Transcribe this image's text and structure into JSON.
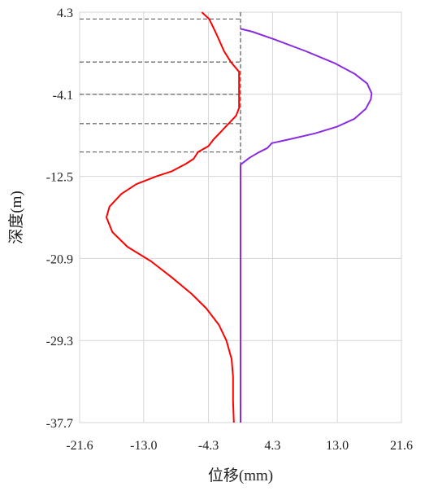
{
  "chart_data": {
    "type": "line",
    "xlabel": "位移(mm)",
    "ylabel": "深度(m)",
    "xlim": [
      -21.6,
      21.6
    ],
    "ylim": [
      -37.7,
      4.3
    ],
    "x_ticks": [
      "-21.6",
      "-13.0",
      "-4.3",
      "4.3",
      "13.0",
      "21.6"
    ],
    "y_ticks": [
      "4.3",
      "-4.1",
      "-12.5",
      "-20.9",
      "-29.3",
      "-37.7"
    ],
    "grid": true,
    "series": [
      {
        "color": "#ff0000",
        "points": [
          [
            -5.2,
            4.3
          ],
          [
            -4.2,
            3.6
          ],
          [
            -3.2,
            2.0
          ],
          [
            -2.2,
            0.3
          ],
          [
            -1.3,
            -0.8
          ],
          [
            -0.2,
            -1.8
          ],
          [
            -0.2,
            -3.5
          ],
          [
            -0.2,
            -5.5
          ],
          [
            -0.6,
            -6.3
          ],
          [
            -1.6,
            -7.1
          ],
          [
            -2.6,
            -7.9
          ],
          [
            -3.6,
            -8.7
          ],
          [
            -4.3,
            -9.4
          ],
          [
            -5.7,
            -10.0
          ],
          [
            -6.3,
            -10.7
          ],
          [
            -7.3,
            -11.2
          ],
          [
            -9.3,
            -12.0
          ],
          [
            -11.3,
            -12.5
          ],
          [
            -14.0,
            -13.3
          ],
          [
            -16.0,
            -14.3
          ],
          [
            -17.6,
            -15.6
          ],
          [
            -18.0,
            -16.7
          ],
          [
            -17.2,
            -18.2
          ],
          [
            -15.2,
            -19.7
          ],
          [
            -12.0,
            -21.2
          ],
          [
            -9.3,
            -22.8
          ],
          [
            -6.6,
            -24.5
          ],
          [
            -4.6,
            -26.0
          ],
          [
            -2.9,
            -27.7
          ],
          [
            -1.9,
            -29.3
          ],
          [
            -1.2,
            -31.2
          ],
          [
            -1.0,
            -33.0
          ],
          [
            -1.0,
            -35.5
          ],
          [
            -0.9,
            -37.7
          ]
        ]
      },
      {
        "color": "#8a2be2",
        "points": [
          [
            0.0,
            2.6
          ],
          [
            1.6,
            2.3
          ],
          [
            4.6,
            1.5
          ],
          [
            8.8,
            0.3
          ],
          [
            12.6,
            -0.9
          ],
          [
            15.3,
            -2.0
          ],
          [
            17.0,
            -3.0
          ],
          [
            17.6,
            -4.0
          ],
          [
            17.5,
            -4.6
          ],
          [
            16.8,
            -5.6
          ],
          [
            15.3,
            -6.6
          ],
          [
            13.0,
            -7.4
          ],
          [
            10.0,
            -8.1
          ],
          [
            6.6,
            -8.7
          ],
          [
            4.2,
            -9.1
          ],
          [
            3.6,
            -9.6
          ],
          [
            2.3,
            -10.1
          ],
          [
            1.2,
            -10.6
          ],
          [
            0.0,
            -11.3
          ],
          [
            0.0,
            -37.7
          ]
        ]
      }
    ],
    "vertical_line": {
      "x": 0,
      "color": "#606060"
    },
    "reference_lines": [
      3.6,
      -0.8,
      -4.1,
      -7.1,
      -10.0
    ]
  }
}
